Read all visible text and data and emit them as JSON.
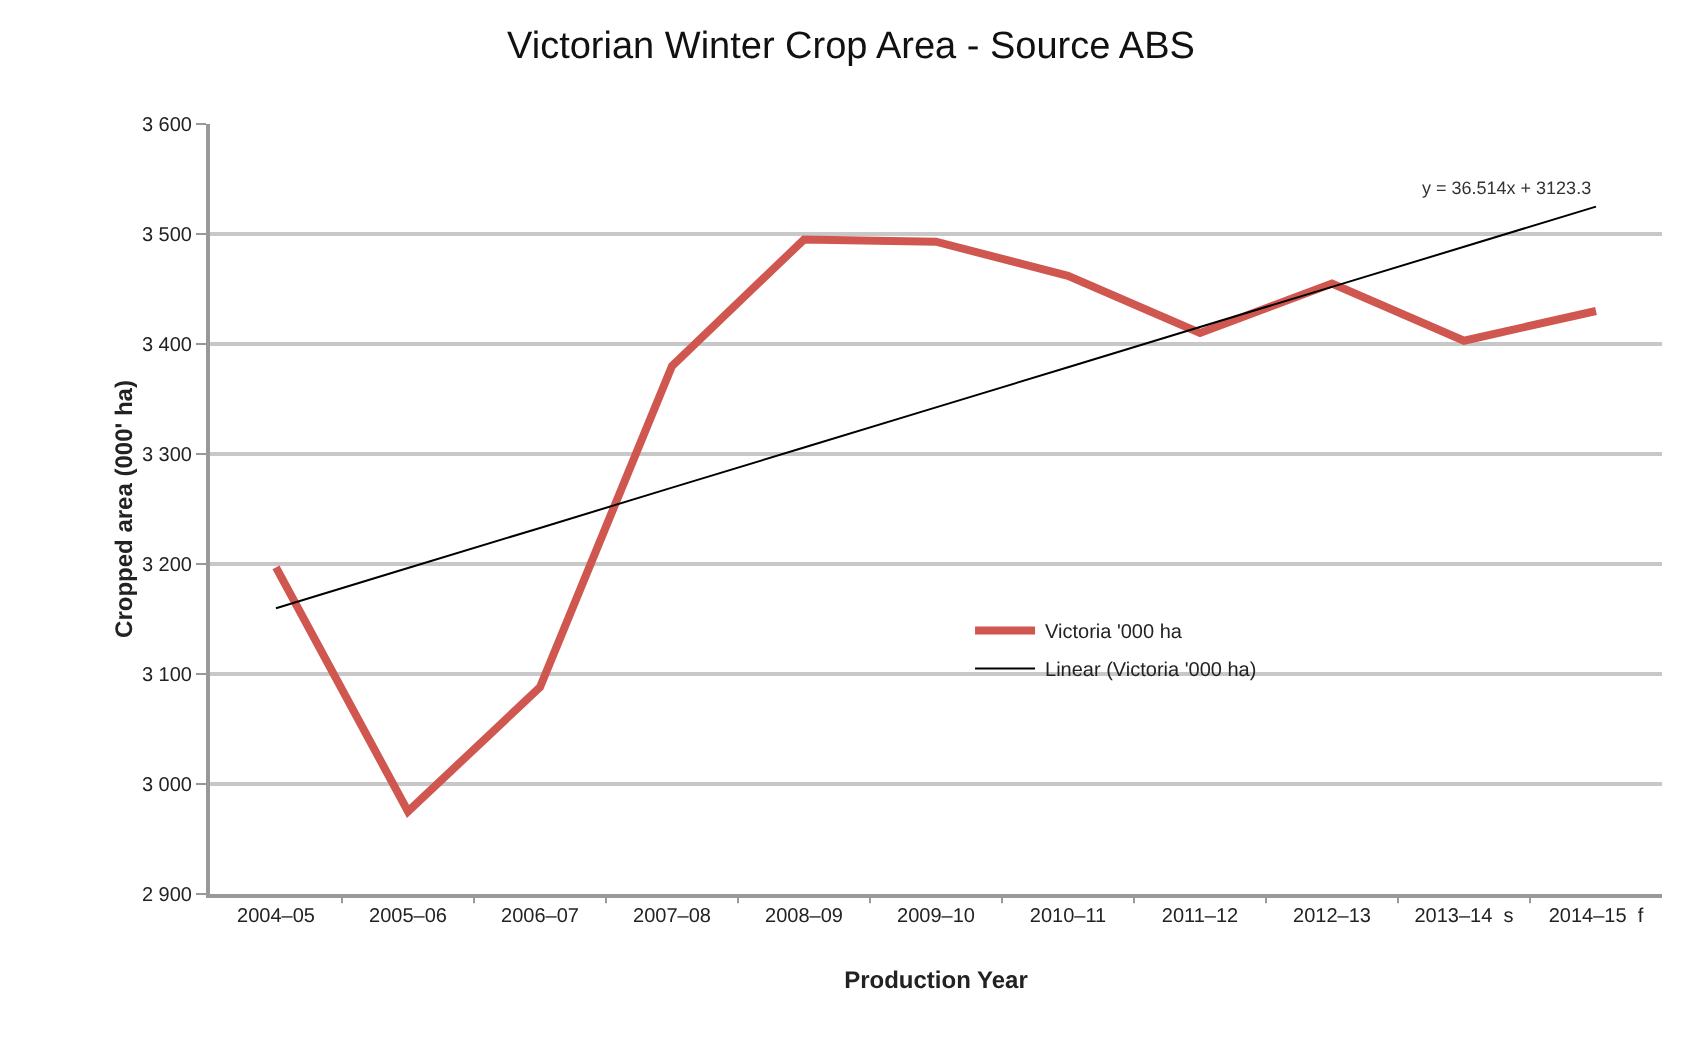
{
  "chart_data": {
    "type": "line",
    "title": "Victorian Winter Crop Area - Source ABS",
    "xlabel": "Production Year",
    "ylabel": "Cropped area (000' ha)",
    "categories": [
      "2004–05",
      "2005–06",
      "2006–07",
      "2007–08",
      "2008–09",
      "2009–10",
      "2010–11",
      "2011–12",
      "2012–13",
      "2013–14  s",
      "2014–15  f"
    ],
    "series": [
      {
        "name": "Victoria '000 ha",
        "color": "#d0574f",
        "values": [
          3197,
          2975,
          3088,
          3380,
          3495,
          3493,
          3462,
          3410,
          3455,
          3403,
          3430
        ]
      },
      {
        "name": "Linear (Victoria '000 ha)",
        "color": "#000000",
        "values": [
          3159.8,
          3196.3,
          3232.8,
          3269.4,
          3305.9,
          3342.4,
          3378.9,
          3415.4,
          3451.9,
          3488.4,
          3524.9
        ]
      }
    ],
    "ylim": [
      2900,
      3600
    ],
    "yticks": [
      {
        "value": 2900,
        "label": "2 900"
      },
      {
        "value": 3000,
        "label": "3 000"
      },
      {
        "value": 3100,
        "label": "3 100"
      },
      {
        "value": 3200,
        "label": "3 200"
      },
      {
        "value": 3300,
        "label": "3 300"
      },
      {
        "value": 3400,
        "label": "3 400"
      },
      {
        "value": 3500,
        "label": "3 500"
      },
      {
        "value": 3600,
        "label": "3 600"
      }
    ],
    "grid": "y",
    "legend": "center",
    "marker": "none",
    "annotations": [
      {
        "text": "y = 36.514x + 3123.3",
        "x": "2014–15  f",
        "y": 3524.9
      }
    ]
  }
}
